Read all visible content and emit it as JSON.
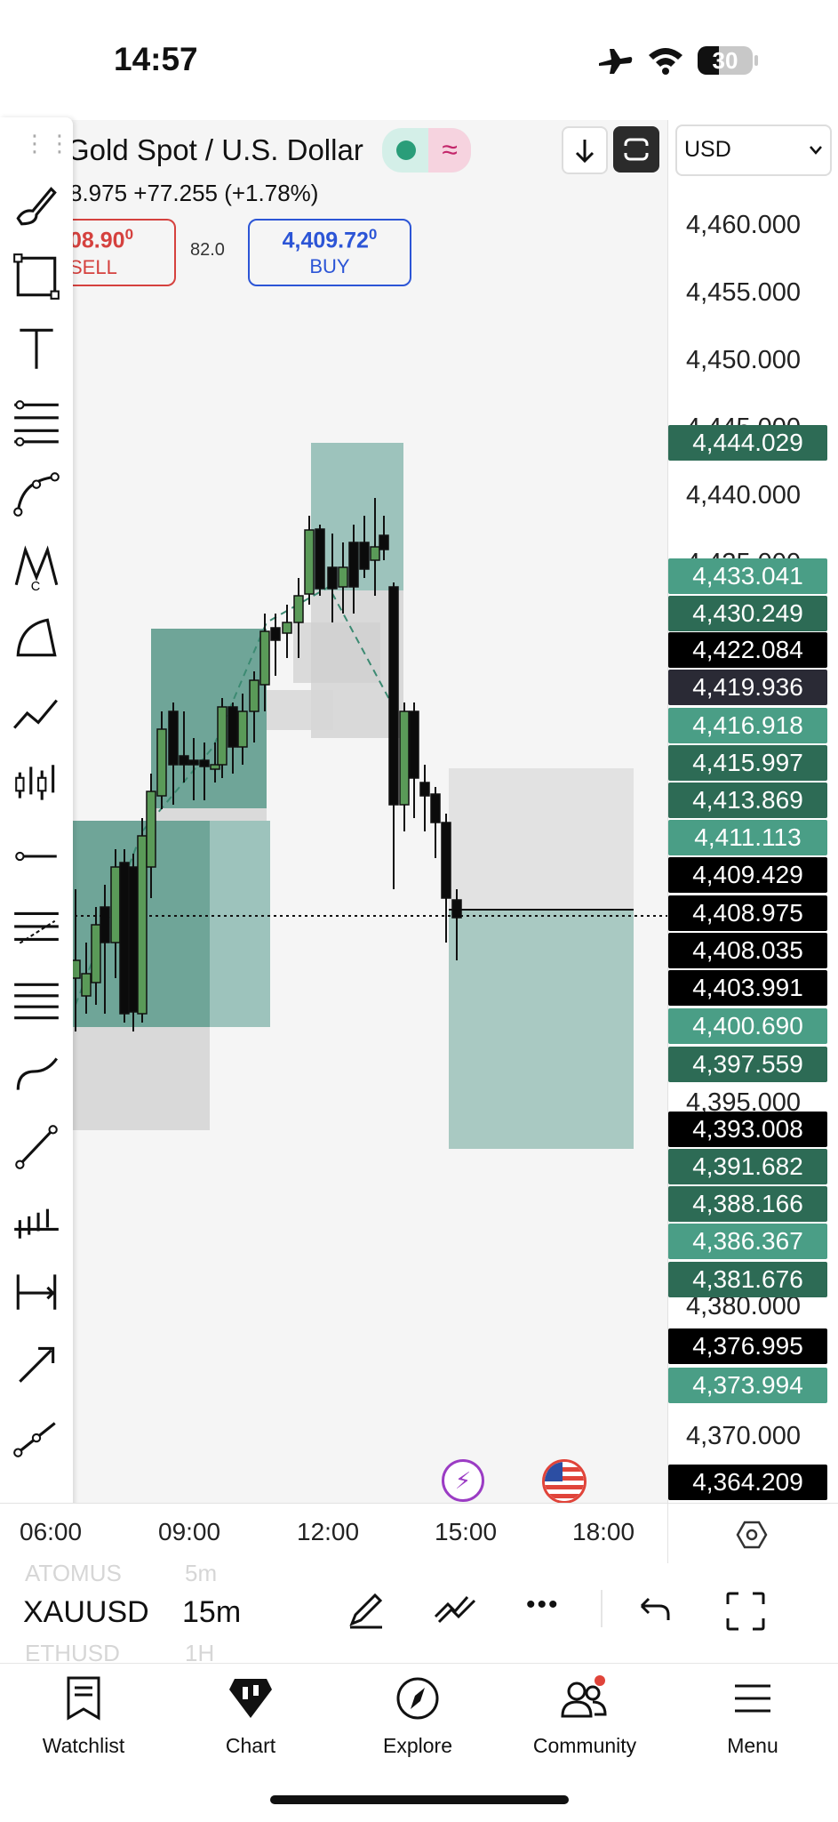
{
  "status_bar": {
    "time": "14:57",
    "battery": "30"
  },
  "header": {
    "symbol_title": "Gold Spot / U.S. Dollar",
    "ohlc_change": "8.975  +77.255 (+1.78%)",
    "sell": {
      "price": "08.90",
      "price_sup": "0",
      "label": "SELL"
    },
    "spread": "82.0",
    "buy": {
      "price": "4,409.72",
      "price_sup": "0",
      "label": "BUY"
    },
    "currency": "USD"
  },
  "price_axis": {
    "ticks": [
      "4,460.000",
      "4,455.000",
      "4,450.000",
      "4,445.000",
      "4,440.000",
      "4,435.000",
      "4,395.000",
      "4,380.000",
      "4,370.000"
    ],
    "tags": [
      {
        "value": "4,444.029",
        "color": "#2d6b55"
      },
      {
        "value": "4,433.041",
        "color": "#4a9e86"
      },
      {
        "value": "4,430.249",
        "color": "#2d6b55"
      },
      {
        "value": "4,422.084",
        "color": "#000000"
      },
      {
        "value": "4,419.936",
        "color": "#2a2a35"
      },
      {
        "value": "4,416.918",
        "color": "#4a9e86"
      },
      {
        "value": "4,415.997",
        "color": "#2d6b55"
      },
      {
        "value": "4,413.869",
        "color": "#2d6b55"
      },
      {
        "value": "4,411.113",
        "color": "#4a9e86"
      },
      {
        "value": "4,409.429",
        "color": "#000000"
      },
      {
        "value": "4,408.975",
        "color": "#000000"
      },
      {
        "value": "4,408.035",
        "color": "#000000"
      },
      {
        "value": "4,403.991",
        "color": "#000000"
      },
      {
        "value": "4,400.690",
        "color": "#4a9e86"
      },
      {
        "value": "4,397.559",
        "color": "#2d6b55"
      },
      {
        "value": "4,393.008",
        "color": "#000000"
      },
      {
        "value": "4,391.682",
        "color": "#2d6b55"
      },
      {
        "value": "4,388.166",
        "color": "#2d6b55"
      },
      {
        "value": "4,386.367",
        "color": "#4a9e86"
      },
      {
        "value": "4,381.676",
        "color": "#2d6b55"
      },
      {
        "value": "4,376.995",
        "color": "#000000"
      },
      {
        "value": "4,373.994",
        "color": "#4a9e86"
      },
      {
        "value": "4,364.209",
        "color": "#000000"
      }
    ]
  },
  "time_axis": {
    "labels": [
      "06:00",
      "09:00",
      "12:00",
      "15:00",
      "18:00"
    ]
  },
  "symbol_bar": {
    "prev_symbol": "ATOMUS",
    "prev_interval": "5m",
    "symbol": "XAUUSD",
    "interval": "15m",
    "next_symbol": "ETHUSD",
    "next_interval": "1H"
  },
  "nav": [
    {
      "label": "Watchlist",
      "icon": "watchlist-icon"
    },
    {
      "label": "Chart",
      "icon": "chart-icon"
    },
    {
      "label": "Explore",
      "icon": "compass-icon"
    },
    {
      "label": "Community",
      "icon": "community-icon"
    },
    {
      "label": "Menu",
      "icon": "menu-icon"
    }
  ],
  "chart_data": {
    "type": "candlestick",
    "x_labels": [
      "06:00",
      "09:00",
      "12:00",
      "15:00",
      "18:00"
    ],
    "current_price": 4408.975
  }
}
